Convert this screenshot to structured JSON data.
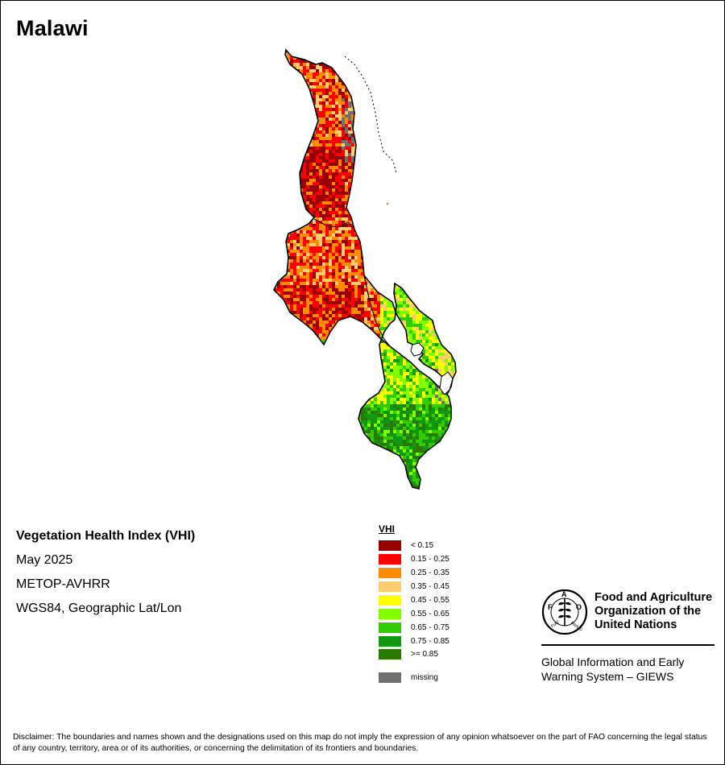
{
  "title": "Malawi",
  "meta": {
    "index_name": "Vegetation Health Index (VHI)",
    "period": "May 2025",
    "sensor": "METOP-AVHRR",
    "projection": "WGS84, Geographic Lat/Lon"
  },
  "legend": {
    "title": "VHI",
    "classes": [
      {
        "label": "< 0.15",
        "color": "#9b0000"
      },
      {
        "label": "0.15 - 0.25",
        "color": "#ff0000"
      },
      {
        "label": "0.25 - 0.35",
        "color": "#ff8c00"
      },
      {
        "label": "0.35 - 0.45",
        "color": "#ffcc70"
      },
      {
        "label": "0.45 - 0.55",
        "color": "#ffff00"
      },
      {
        "label": "0.55 - 0.65",
        "color": "#80ff00"
      },
      {
        "label": "0.65 - 0.75",
        "color": "#33cc00"
      },
      {
        "label": "0.75 - 0.85",
        "color": "#119911"
      },
      {
        "label": ">= 0.85",
        "color": "#2b7a00"
      }
    ],
    "missing": {
      "label": "missing",
      "color": "#707070"
    }
  },
  "fao": {
    "name_line1": "Food and Agriculture",
    "name_line2": "Organization of the",
    "name_line3": "United Nations",
    "logo_letters": "F A O",
    "logo_motto": "FIAT PANIS"
  },
  "giews": {
    "line1": "Global Information and Early",
    "line2": "Warning System – GIEWS"
  },
  "disclaimer": "Disclaimer: The boundaries and names shown and the designations used on this map do not imply the expression of any opinion whatsoever on the part of FAO concerning the legal status of any country, territory, area or of its authorities, or concerning the delimitation of its frontiers and boundaries."
}
